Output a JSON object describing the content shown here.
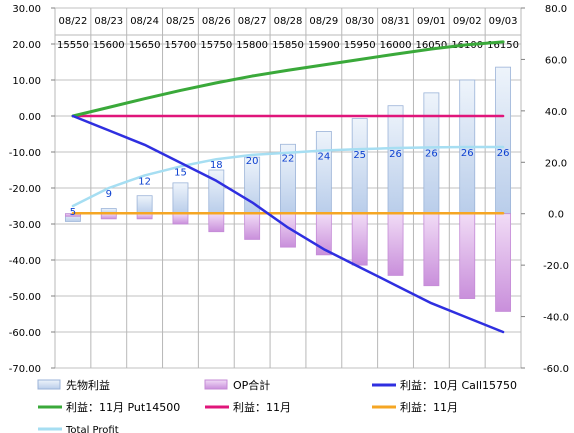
{
  "chart_data": {
    "type": "bar",
    "categories": [
      "08/22",
      "08/23",
      "08/24",
      "08/25",
      "08/26",
      "08/27",
      "08/28",
      "08/29",
      "08/30",
      "08/31",
      "09/01",
      "09/02",
      "09/03"
    ],
    "prices": [
      "15550",
      "15600",
      "15650",
      "15700",
      "15750",
      "15800",
      "15850",
      "15900",
      "15950",
      "16000",
      "16050",
      "16100",
      "16150"
    ],
    "y_left": {
      "min": -70,
      "max": 30,
      "step": 10,
      "ticks": [
        "30.00",
        "20.00",
        "10.00",
        "0.00",
        "-10.00",
        "-20.00",
        "-30.00",
        "-40.00",
        "-50.00",
        "-60.00",
        "-70.00"
      ]
    },
    "y_right": {
      "min": -60,
      "max": 80,
      "step": 20,
      "ticks": [
        "80.0",
        "60.0",
        "40.0",
        "20.0",
        "0.0",
        "-20.0",
        "-40.0",
        "-60.0"
      ]
    },
    "grid": true,
    "legend_position": "bottom",
    "series": [
      {
        "name": "先物利益",
        "kind": "bar",
        "axis": "right",
        "values": [
          5,
          9,
          12,
          15,
          18,
          20,
          22,
          24,
          25,
          26,
          26,
          26,
          26
        ],
        "values_right_axis": [
          -3,
          2,
          7,
          12,
          17,
          22,
          27,
          32,
          37,
          42,
          47,
          52,
          57
        ],
        "color": "#dde8f5"
      },
      {
        "name": "OP合計",
        "kind": "bar",
        "axis": "right",
        "values_right_axis": [
          -1,
          -2,
          -2,
          -4,
          -7,
          -10,
          -13,
          -16,
          -20,
          -24,
          -28,
          -33,
          -38
        ],
        "color": "#d9a6e6"
      },
      {
        "name": "利益：10月 Call15750",
        "kind": "line",
        "axis": "left",
        "values": [
          0,
          -4,
          -8,
          -13,
          -18,
          -24,
          -31,
          -37,
          -42,
          -47,
          -52,
          -56,
          -60
        ],
        "color": "#2f2fe0"
      },
      {
        "name": "利益：11月 Put14500",
        "kind": "line",
        "axis": "left",
        "values": [
          0,
          2.4,
          4.8,
          7.1,
          9.2,
          11.1,
          12.7,
          14.2,
          15.7,
          17.2,
          18.6,
          19.8,
          20.6
        ],
        "color": "#3aa93a"
      },
      {
        "name": "利益：11月",
        "kind": "line",
        "axis": "left",
        "values": [
          0,
          0,
          0,
          0,
          0,
          0,
          0,
          0,
          0,
          0,
          0,
          0,
          0
        ],
        "color": "#e0157a"
      },
      {
        "name": "利益：11月",
        "kind": "line",
        "axis": "left",
        "values": [
          -27,
          -27,
          -27,
          -27,
          -27,
          -27,
          -27,
          -27,
          -27,
          -27,
          -27,
          -27,
          -27
        ],
        "color": "#f5a623"
      },
      {
        "name": "Total Profit",
        "kind": "line",
        "axis": "left",
        "values": [
          -25,
          -20,
          -16.5,
          -14,
          -12,
          -10.8,
          -10.2,
          -9.6,
          -9.2,
          -8.9,
          -8.7,
          -8.6,
          -8.6
        ],
        "color": "#a6def2"
      }
    ],
    "data_labels": [
      "5",
      "9",
      "12",
      "15",
      "18",
      "20",
      "22",
      "24",
      "25",
      "26",
      "26",
      "26",
      "26"
    ]
  }
}
